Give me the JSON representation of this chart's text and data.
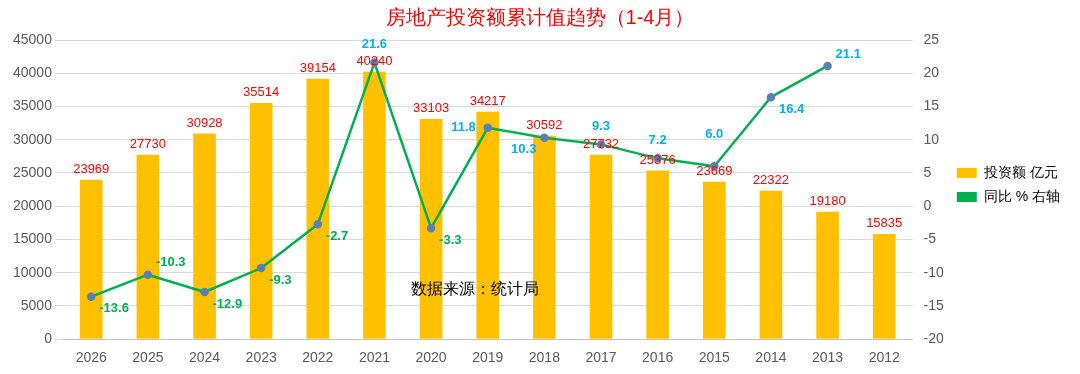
{
  "chart_data": {
    "type": "bar",
    "title": "房地产投资额累计值趋势（1-4月）",
    "categories": [
      "2026",
      "2025",
      "2024",
      "2023",
      "2022",
      "2021",
      "2020",
      "2019",
      "2018",
      "2017",
      "2016",
      "2015",
      "2014",
      "2013",
      "2012"
    ],
    "series": [
      {
        "name": "投资额 亿元",
        "color": "#ffc000",
        "values": [
          23969,
          27730,
          30928,
          35514,
          39154,
          40240,
          33103,
          34217,
          30592,
          27732,
          25376,
          23669,
          22322,
          19180,
          15835
        ],
        "value_labels": [
          "23969",
          "27730",
          "30928",
          "35514",
          "39154",
          "40240",
          "33103",
          "34217",
          "30592",
          "27732",
          "25376",
          "23669",
          "22322",
          "19180",
          "15835"
        ]
      },
      {
        "name": "同比 % 右轴",
        "type": "line",
        "axis": "y2",
        "color": "#00b050",
        "values": [
          -13.6,
          -10.3,
          -12.9,
          -9.3,
          -2.7,
          21.6,
          -3.3,
          11.8,
          10.3,
          9.3,
          7.2,
          6.0,
          16.4,
          21.1,
          null
        ],
        "value_labels": [
          "-13.6",
          "-10.3",
          "-12.9",
          "-9.3",
          "-2.7",
          "21.6",
          "-3.3",
          "11.8",
          "10.3",
          "9.3",
          "7.2",
          "6.0",
          "16.4",
          "21.1",
          null
        ]
      }
    ],
    "ylim": [
      0,
      45000
    ],
    "yticks": [
      0,
      5000,
      10000,
      15000,
      20000,
      25000,
      30000,
      35000,
      40000,
      45000
    ],
    "y2lim": [
      -20,
      25
    ],
    "y2ticks": [
      -20,
      -15,
      -10,
      -5,
      0,
      5,
      10,
      15,
      20,
      25
    ],
    "grid": "y",
    "legend": "right",
    "marker": "circle",
    "annotations": [
      "数据来源：统计局"
    ]
  }
}
